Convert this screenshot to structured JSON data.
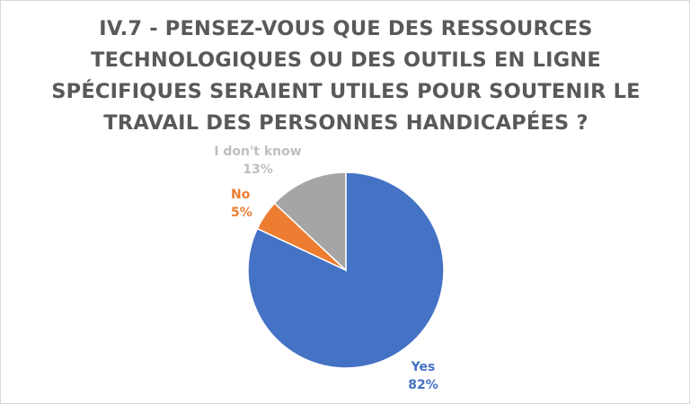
{
  "chart_data": {
    "type": "pie",
    "title_lines": [
      "IV.7 - PENSEZ-VOUS QUE DES RESSOURCES",
      "TECHNOLOGIQUES OU DES OUTILS EN LIGNE",
      "SPÉCIFIQUES SERAIENT UTILES POUR SOUTENIR LE",
      "TRAVAIL DES PERSONNES HANDICAPÉES ?"
    ],
    "slices": [
      {
        "label": "Yes",
        "value": 82,
        "display": "82%",
        "color": "#4472c4"
      },
      {
        "label": "No",
        "value": 5,
        "display": "5%",
        "color": "#ed7d31"
      },
      {
        "label": "I don't know",
        "value": 13,
        "display": "13%",
        "color": "#a5a5a5"
      }
    ],
    "legend": "none",
    "start_angle": "12 o'clock",
    "direction": "clockwise"
  }
}
